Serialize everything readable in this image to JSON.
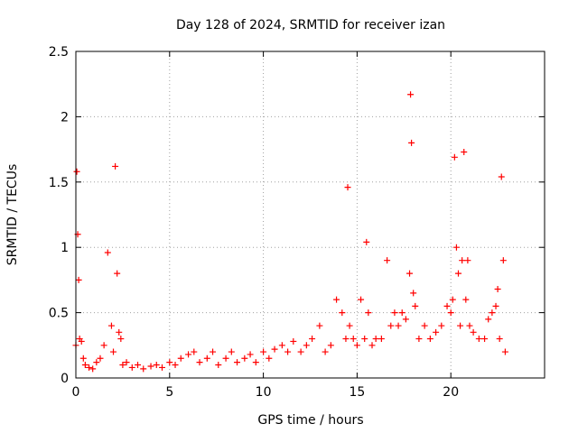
{
  "chart_data": {
    "type": "scatter",
    "title": "Day 128 of 2024, SRMTID for receiver izan",
    "xlabel": "GPS time / hours",
    "ylabel": "SRMTID / TECUs",
    "xlim": [
      0,
      25
    ],
    "ylim": [
      0,
      2.5
    ],
    "x_ticks": [
      0,
      5,
      10,
      15,
      20
    ],
    "x_tick_labels": [
      "0",
      "5",
      "10",
      "15",
      "20"
    ],
    "y_ticks": [
      0,
      0.5,
      1,
      1.5,
      2,
      2.5
    ],
    "y_tick_labels": [
      "0",
      "0.5",
      "1",
      "1.5",
      "2",
      "2.5"
    ],
    "grid": true,
    "marker": "+",
    "series": [
      {
        "name": "SRMTID",
        "color": "#ff0000",
        "x": [
          0.0,
          0.05,
          0.1,
          0.15,
          0.2,
          0.3,
          0.4,
          0.5,
          0.7,
          0.9,
          1.1,
          1.3,
          1.5,
          1.7,
          1.9,
          2.0,
          2.1,
          2.2,
          2.3,
          2.4,
          2.5,
          2.7,
          3.0,
          3.3,
          3.6,
          4.0,
          4.3,
          4.6,
          5.0,
          5.3,
          5.6,
          6.0,
          6.3,
          6.6,
          7.0,
          7.3,
          7.6,
          8.0,
          8.3,
          8.6,
          9.0,
          9.3,
          9.6,
          10.0,
          10.3,
          10.6,
          11.0,
          11.3,
          11.6,
          12.0,
          12.3,
          12.6,
          13.0,
          13.3,
          13.6,
          13.9,
          14.2,
          14.4,
          14.5,
          14.6,
          14.8,
          15.0,
          15.2,
          15.4,
          15.5,
          15.6,
          15.8,
          16.0,
          16.3,
          16.6,
          16.8,
          17.0,
          17.2,
          17.4,
          17.6,
          17.8,
          17.85,
          17.9,
          18.0,
          18.1,
          18.3,
          18.6,
          18.9,
          19.2,
          19.5,
          19.8,
          20.0,
          20.1,
          20.2,
          20.3,
          20.4,
          20.5,
          20.6,
          20.7,
          20.8,
          20.9,
          21.0,
          21.2,
          21.5,
          21.8,
          22.0,
          22.2,
          22.4,
          22.5,
          22.6,
          22.7,
          22.8,
          22.9
        ],
        "y": [
          0.25,
          1.58,
          1.1,
          0.75,
          0.3,
          0.28,
          0.15,
          0.1,
          0.08,
          0.07,
          0.12,
          0.15,
          0.25,
          0.96,
          0.4,
          0.2,
          1.62,
          0.8,
          0.35,
          0.3,
          0.1,
          0.12,
          0.08,
          0.1,
          0.07,
          0.09,
          0.1,
          0.08,
          0.12,
          0.1,
          0.15,
          0.18,
          0.2,
          0.12,
          0.15,
          0.2,
          0.1,
          0.15,
          0.2,
          0.12,
          0.15,
          0.18,
          0.12,
          0.2,
          0.15,
          0.22,
          0.25,
          0.2,
          0.28,
          0.2,
          0.25,
          0.3,
          0.4,
          0.2,
          0.25,
          0.6,
          0.5,
          0.3,
          1.46,
          0.4,
          0.3,
          0.25,
          0.6,
          0.3,
          1.04,
          0.5,
          0.25,
          0.3,
          0.3,
          0.9,
          0.4,
          0.5,
          0.4,
          0.5,
          0.45,
          0.8,
          2.17,
          1.8,
          0.65,
          0.55,
          0.3,
          0.4,
          0.3,
          0.35,
          0.4,
          0.55,
          0.5,
          0.6,
          1.69,
          1.0,
          0.8,
          0.4,
          0.9,
          1.73,
          0.6,
          0.9,
          0.4,
          0.35,
          0.3,
          0.3,
          0.45,
          0.5,
          0.55,
          0.68,
          0.3,
          1.54,
          0.9,
          0.2
        ]
      }
    ]
  }
}
